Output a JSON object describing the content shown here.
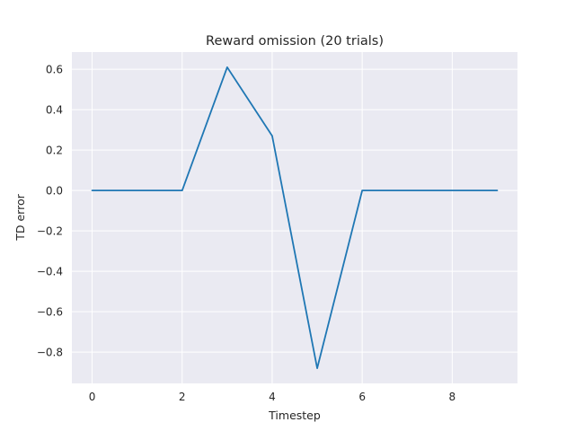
{
  "chart_data": {
    "type": "line",
    "title": "Reward omission (20 trials)",
    "xlabel": "Timestep",
    "ylabel": "TD error",
    "xlim": [
      -0.45,
      9.45
    ],
    "ylim": [
      -0.955,
      0.685
    ],
    "xticks": [
      0,
      2,
      4,
      6,
      8
    ],
    "yticks": [
      -0.8,
      -0.6,
      -0.4,
      -0.2,
      0.0,
      0.2,
      0.4,
      0.6
    ],
    "xtick_labels": [
      "0",
      "2",
      "4",
      "6",
      "8"
    ],
    "ytick_labels": [
      "−0.8",
      "−0.6",
      "−0.4",
      "−0.2",
      "0.0",
      "0.2",
      "0.4",
      "0.6"
    ],
    "grid": true,
    "background": "#eaeaf2",
    "series": [
      {
        "color": "#1f77b4",
        "x": [
          0,
          1,
          2,
          3,
          4,
          5,
          6,
          7,
          8,
          9
        ],
        "y": [
          0.0,
          0.0,
          0.0,
          0.61,
          0.27,
          -0.88,
          0.0,
          0.0,
          0.0,
          0.0
        ]
      }
    ]
  }
}
